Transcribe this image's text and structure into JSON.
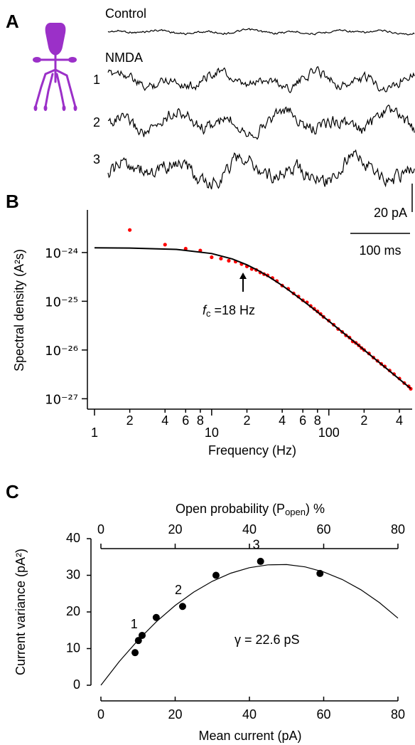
{
  "chart_data": [
    {
      "type": "traces",
      "panel": "A",
      "labels": {
        "control": "Control",
        "drug": "NMDA"
      },
      "trace_labels": [
        "1",
        "2",
        "3"
      ],
      "scale_bar": {
        "y": "20 pA",
        "x": "100 ms"
      }
    },
    {
      "type": "scatter",
      "panel": "B",
      "xlabel": "Frequency (Hz)",
      "ylabel": "Spectral density (A²s)",
      "xscale": "log",
      "yscale": "log",
      "xlim": [
        0.87,
        500
      ],
      "ylim": [
        7e-28,
        7e-24
      ],
      "xticks": [
        1,
        {
          "value": 2,
          "label": "2"
        },
        {
          "value": 4,
          "label": "4"
        },
        {
          "value": 6,
          "label": "6"
        },
        {
          "value": 8,
          "label": "8"
        },
        10,
        {
          "value": 20,
          "label": "2"
        },
        {
          "value": 40,
          "label": "4"
        },
        {
          "value": 60,
          "label": "6"
        },
        {
          "value": 80,
          "label": "8"
        },
        100,
        {
          "value": 200,
          "label": "2"
        },
        {
          "value": 400,
          "label": "4"
        }
      ],
      "yticks": [
        {
          "value": 1e-24,
          "label": "10⁻²⁴"
        },
        {
          "value": 1e-25,
          "label": "10⁻²⁵"
        },
        {
          "value": 1e-26,
          "label": "10⁻²⁶"
        },
        {
          "value": 1e-27,
          "label": "10⁻²⁷"
        }
      ],
      "annotation": {
        "symbol": "f",
        "subscript": "c",
        "text": " =18 Hz"
      },
      "series": [
        {
          "type": "scatter",
          "color": "#ff0000",
          "x": [
            2,
            4,
            6,
            8,
            10,
            12,
            14,
            16,
            18,
            20,
            22,
            24,
            26,
            28,
            30,
            33,
            36,
            40,
            45,
            50,
            55,
            60,
            65,
            70,
            75,
            80,
            85,
            90,
            100,
            110,
            120,
            130,
            140,
            150,
            160,
            170,
            180,
            190,
            200,
            220,
            240,
            260,
            280,
            300,
            330,
            360,
            400,
            440,
            480,
            500
          ],
          "values": [
            2.9e-24,
            1.45e-24,
            1.2e-24,
            1.1e-24,
            8e-25,
            7.5e-25,
            6.8e-25,
            6.5e-25,
            5.8e-25,
            5.2e-25,
            4.6e-25,
            4.4e-25,
            3.9e-25,
            3.6e-25,
            3.4e-25,
            3e-25,
            2.6e-25,
            2.1e-25,
            1.8e-25,
            1.45e-25,
            1.25e-25,
            1.05e-25,
            9.5e-26,
            8e-26,
            7e-26,
            6.2e-26,
            5.5e-26,
            4.8e-26,
            4e-26,
            3.3e-26,
            2.7e-26,
            2.35e-26,
            2e-26,
            1.8e-26,
            1.5e-26,
            1.4e-26,
            1.25e-26,
            1.1e-26,
            1e-26,
            8.5e-27,
            7e-27,
            6e-27,
            5.2e-27,
            4.6e-27,
            3.8e-27,
            3.2e-27,
            2.6e-27,
            2.1e-27,
            1.8e-27,
            1.6e-27
          ]
        },
        {
          "type": "line",
          "color": "#000000",
          "x": [
            1,
            2,
            5,
            10,
            15,
            20,
            25,
            30,
            40,
            50,
            70,
            100,
            150,
            200,
            300,
            500
          ],
          "values": [
            1.246e-24,
            1.235e-24,
            1.16e-24,
            9.55e-25,
            7.38e-25,
            5.59e-25,
            4.27e-25,
            3.31e-25,
            2.105e-25,
            1.434e-25,
            7.75e-26,
            3.92e-26,
            1.775e-26,
            1.004e-26,
            4.48e-27,
            1.618e-27
          ]
        }
      ]
    },
    {
      "type": "scatter",
      "panel": "C",
      "xlabel": "Mean current (pA)",
      "ylabel": "Current variance (pA²)",
      "x2label": {
        "text": "Open probability (P",
        "subscript": "open",
        "suffix": ") %"
      },
      "xlim": [
        0,
        80
      ],
      "ylim": [
        0,
        40
      ],
      "x2lim": [
        0,
        80
      ],
      "xticks": [
        0,
        20,
        40,
        60,
        80
      ],
      "yticks": [
        0,
        10,
        20,
        30,
        40
      ],
      "x2ticks": [
        0,
        20,
        40,
        60,
        80
      ],
      "annotation": "γ = 22.6 pS",
      "series": [
        {
          "type": "scatter",
          "color": "#000000",
          "x": [
            9.2,
            10.1,
            11.1,
            14.9,
            22,
            31,
            43,
            59
          ],
          "values": [
            8.9,
            12.2,
            13.6,
            18.5,
            21.5,
            30,
            33.8,
            30.5
          ],
          "labels": [
            null,
            "1",
            null,
            null,
            "2",
            null,
            "3",
            null
          ]
        },
        {
          "type": "line",
          "color": "#000000",
          "x": [
            0,
            5,
            10,
            15,
            20,
            25,
            30,
            35,
            40,
            45,
            50,
            55,
            60,
            65,
            70,
            75,
            80
          ],
          "values": [
            0,
            6.52,
            12.32,
            17.4,
            21.77,
            25.42,
            28.36,
            30.58,
            32.08,
            32.86,
            32.93,
            32.29,
            30.92,
            28.85,
            26.05,
            22.54,
            18.31
          ]
        }
      ]
    }
  ]
}
